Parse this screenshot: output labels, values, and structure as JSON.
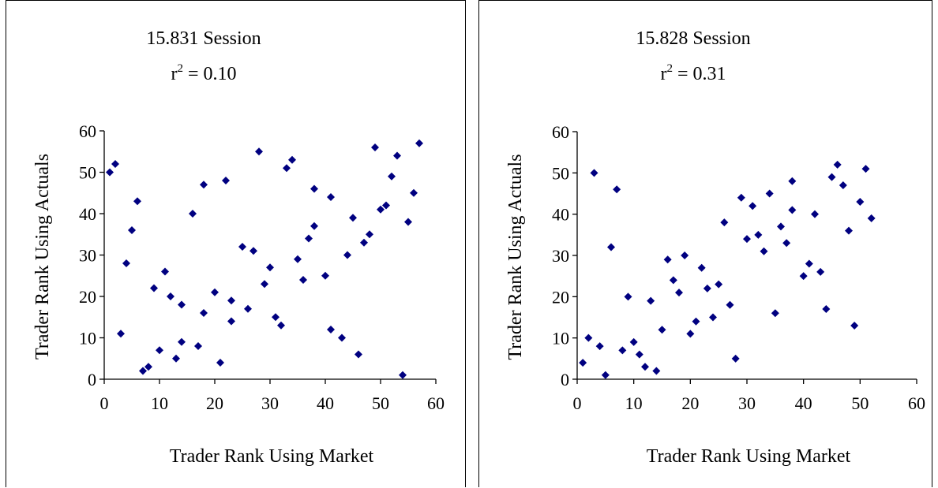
{
  "charts": [
    {
      "title": "15.831 Session",
      "r2_prefix": "r",
      "r2_sup": "2",
      "r2_value": " = 0.10"
    },
    {
      "title": "15.828 Session",
      "r2_prefix": "r",
      "r2_sup": "2",
      "r2_value": " = 0.31"
    }
  ],
  "colors": {
    "marker": "#000080",
    "axis": "#000000"
  },
  "chart_data": [
    {
      "type": "scatter",
      "title": "15.831 Session r2 = 0.10",
      "xlabel": "Trader Rank Using Market",
      "ylabel": "Trader Rank Using Actuals",
      "xlim": [
        0,
        60
      ],
      "ylim": [
        0,
        60
      ],
      "xticks": [
        0,
        10,
        20,
        30,
        40,
        50,
        60
      ],
      "yticks": [
        0,
        10,
        20,
        30,
        40,
        50,
        60
      ],
      "grid": false,
      "legend": "none",
      "marker": "diamond",
      "points": [
        [
          1,
          50
        ],
        [
          2,
          52
        ],
        [
          3,
          11
        ],
        [
          4,
          28
        ],
        [
          5,
          36
        ],
        [
          6,
          43
        ],
        [
          7,
          2
        ],
        [
          8,
          3
        ],
        [
          9,
          22
        ],
        [
          10,
          7
        ],
        [
          11,
          26
        ],
        [
          12,
          20
        ],
        [
          13,
          5
        ],
        [
          14,
          18
        ],
        [
          14,
          9
        ],
        [
          16,
          40
        ],
        [
          17,
          8
        ],
        [
          18,
          47
        ],
        [
          18,
          16
        ],
        [
          20,
          21
        ],
        [
          21,
          4
        ],
        [
          22,
          48
        ],
        [
          23,
          19
        ],
        [
          23,
          14
        ],
        [
          25,
          32
        ],
        [
          26,
          17
        ],
        [
          27,
          31
        ],
        [
          28,
          55
        ],
        [
          29,
          23
        ],
        [
          30,
          27
        ],
        [
          31,
          15
        ],
        [
          32,
          13
        ],
        [
          33,
          51
        ],
        [
          34,
          53
        ],
        [
          35,
          29
        ],
        [
          36,
          24
        ],
        [
          37,
          34
        ],
        [
          38,
          46
        ],
        [
          38,
          37
        ],
        [
          40,
          25
        ],
        [
          41,
          44
        ],
        [
          41,
          12
        ],
        [
          43,
          10
        ],
        [
          44,
          30
        ],
        [
          45,
          39
        ],
        [
          46,
          6
        ],
        [
          47,
          33
        ],
        [
          48,
          35
        ],
        [
          49,
          56
        ],
        [
          50,
          41
        ],
        [
          51,
          42
        ],
        [
          52,
          49
        ],
        [
          53,
          54
        ],
        [
          54,
          1
        ],
        [
          55,
          38
        ],
        [
          56,
          45
        ],
        [
          57,
          57
        ]
      ]
    },
    {
      "type": "scatter",
      "title": "15.828 Session r2 = 0.31",
      "xlabel": "Trader Rank Using Market",
      "ylabel": "Trader Rank Using Actuals",
      "xlim": [
        0,
        60
      ],
      "ylim": [
        0,
        60
      ],
      "xticks": [
        0,
        10,
        20,
        30,
        40,
        50,
        60
      ],
      "yticks": [
        0,
        10,
        20,
        30,
        40,
        50,
        60
      ],
      "grid": false,
      "legend": "none",
      "marker": "diamond",
      "points": [
        [
          1,
          4
        ],
        [
          2,
          10
        ],
        [
          3,
          50
        ],
        [
          4,
          8
        ],
        [
          5,
          1
        ],
        [
          6,
          32
        ],
        [
          7,
          46
        ],
        [
          8,
          7
        ],
        [
          9,
          20
        ],
        [
          10,
          9
        ],
        [
          11,
          6
        ],
        [
          12,
          3
        ],
        [
          13,
          19
        ],
        [
          14,
          2
        ],
        [
          15,
          12
        ],
        [
          16,
          29
        ],
        [
          17,
          24
        ],
        [
          18,
          21
        ],
        [
          19,
          30
        ],
        [
          20,
          11
        ],
        [
          21,
          14
        ],
        [
          22,
          27
        ],
        [
          23,
          22
        ],
        [
          24,
          15
        ],
        [
          25,
          23
        ],
        [
          26,
          38
        ],
        [
          27,
          18
        ],
        [
          28,
          5
        ],
        [
          29,
          44
        ],
        [
          30,
          34
        ],
        [
          31,
          42
        ],
        [
          32,
          35
        ],
        [
          33,
          31
        ],
        [
          34,
          45
        ],
        [
          35,
          16
        ],
        [
          36,
          37
        ],
        [
          37,
          33
        ],
        [
          38,
          48
        ],
        [
          38,
          41
        ],
        [
          40,
          25
        ],
        [
          41,
          28
        ],
        [
          42,
          40
        ],
        [
          43,
          26
        ],
        [
          44,
          17
        ],
        [
          45,
          49
        ],
        [
          46,
          52
        ],
        [
          47,
          47
        ],
        [
          48,
          36
        ],
        [
          49,
          13
        ],
        [
          50,
          43
        ],
        [
          51,
          51
        ],
        [
          52,
          39
        ]
      ]
    }
  ]
}
